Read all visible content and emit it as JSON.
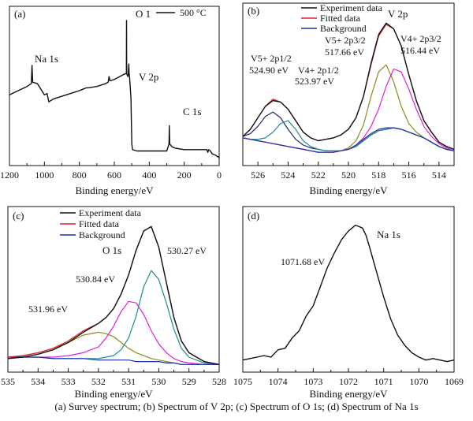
{
  "caption": "(a) Survey spectrum; (b) Spectrum of V 2p; (c) Spectrum of O 1s; (d) Spectrum of Na 1s",
  "colors": {
    "experiment": "#111111",
    "fitted": "#e0202a",
    "background": "#1f2fa8",
    "peak_olive": "#8c8c1e",
    "peak_teal": "#1f8c8c",
    "peak_magenta": "#e020d8",
    "peak_navy": "#1a2a6c"
  },
  "chart_data": [
    {
      "id": "a",
      "panel_label": "(a)",
      "type": "line",
      "xlabel": "Binding energy/eV",
      "ylabel": "",
      "xlim": [
        1200,
        0
      ],
      "xticks": [
        1200,
        1000,
        800,
        600,
        400,
        200,
        0
      ],
      "legend": {
        "position": "top-right",
        "entries": [
          "500 °C"
        ]
      },
      "annotations": [
        "O 1",
        "Na 1s",
        "V 2p",
        "C 1s"
      ],
      "series": [
        {
          "name": "500 °C",
          "color": "#111111",
          "x": [
            1200,
            1150,
            1100,
            1075,
            1071,
            1067,
            1040,
            1000,
            985,
            975,
            950,
            900,
            850,
            800,
            780,
            760,
            750,
            700,
            650,
            635,
            630,
            625,
            600,
            570,
            540,
            531,
            530,
            529,
            522,
            520,
            517,
            515,
            513,
            510,
            505,
            500,
            496,
            470,
            440,
            400,
            350,
            300,
            287,
            285,
            283,
            270,
            250,
            200,
            150,
            100,
            70,
            65,
            60,
            50,
            40,
            20,
            10,
            5,
            0
          ],
          "y": [
            0.47,
            0.5,
            0.53,
            0.55,
            0.68,
            0.56,
            0.55,
            0.47,
            0.48,
            0.42,
            0.44,
            0.46,
            0.48,
            0.5,
            0.51,
            0.52,
            0.52,
            0.53,
            0.55,
            0.56,
            0.6,
            0.57,
            0.58,
            0.6,
            0.62,
            0.62,
            1.0,
            0.62,
            0.6,
            0.62,
            0.69,
            0.62,
            0.6,
            0.55,
            0.45,
            0.12,
            0.08,
            0.07,
            0.07,
            0.07,
            0.07,
            0.07,
            0.12,
            0.25,
            0.12,
            0.1,
            0.09,
            0.08,
            0.08,
            0.08,
            0.08,
            0.06,
            0.08,
            0.07,
            0.05,
            0.04,
            0.03,
            0.03,
            0.02
          ]
        }
      ]
    },
    {
      "id": "b",
      "panel_label": "(b)",
      "type": "line",
      "xlabel": "Binding energy/eV",
      "ylabel": "",
      "xlim": [
        527,
        513
      ],
      "xticks": [
        526,
        524,
        522,
        520,
        518,
        516,
        514
      ],
      "legend": {
        "position": "top-left",
        "entries": [
          "Experiment data",
          "Fitted data",
          "Background"
        ]
      },
      "annotations": [
        "V 2p",
        "V5+ 2p1/2",
        "524.90 eV",
        "V4+ 2p1/2",
        "523.97 eV",
        "V5+ 2p3/2",
        "517.66 eV",
        "V4+ 2p3/2",
        "516.44 eV"
      ],
      "x": [
        527,
        526.5,
        526,
        525.5,
        525,
        524.5,
        524,
        523.5,
        523,
        522.5,
        522,
        521.5,
        521,
        520.5,
        520,
        519.5,
        519,
        518.5,
        518,
        517.5,
        517,
        516.5,
        516,
        515.5,
        515,
        514.5,
        514,
        513.5,
        513
      ],
      "series": [
        {
          "name": "Experiment data",
          "color": "#111111",
          "values": [
            0.17,
            0.22,
            0.3,
            0.38,
            0.42,
            0.41,
            0.36,
            0.28,
            0.2,
            0.16,
            0.14,
            0.15,
            0.16,
            0.18,
            0.22,
            0.3,
            0.45,
            0.68,
            0.88,
            0.96,
            0.92,
            0.8,
            0.6,
            0.42,
            0.28,
            0.2,
            0.13,
            0.1,
            0.08
          ]
        },
        {
          "name": "Fitted data",
          "color": "#e0202a",
          "values": [
            0.17,
            0.22,
            0.3,
            0.38,
            0.43,
            0.41,
            0.36,
            0.28,
            0.2,
            0.16,
            0.14,
            0.15,
            0.16,
            0.18,
            0.22,
            0.3,
            0.45,
            0.67,
            0.87,
            0.95,
            0.92,
            0.8,
            0.6,
            0.42,
            0.28,
            0.2,
            0.13,
            0.1,
            0.08
          ]
        },
        {
          "name": "Background",
          "color": "#1f2fa8",
          "values": [
            0.16,
            0.15,
            0.14,
            0.13,
            0.12,
            0.11,
            0.1,
            0.09,
            0.08,
            0.07,
            0.06,
            0.06,
            0.06,
            0.07,
            0.08,
            0.11,
            0.15,
            0.19,
            0.22,
            0.23,
            0.23,
            0.22,
            0.2,
            0.18,
            0.16,
            0.13,
            0.1,
            0.08,
            0.07
          ]
        },
        {
          "name": "",
          "color": "#1a2a6c",
          "values": [
            0.17,
            0.19,
            0.24,
            0.31,
            0.34,
            0.3,
            0.22,
            0.15,
            0.11,
            0.09,
            0.08,
            0.07,
            0.07,
            0.07,
            0.08,
            0.1,
            0.14,
            0.18,
            0.21,
            0.22,
            0.23,
            0.22,
            0.2,
            0.18,
            0.16,
            0.13,
            0.1,
            0.08,
            0.07
          ]
        },
        {
          "name": "",
          "color": "#1f8c8c",
          "values": [
            0.16,
            0.15,
            0.15,
            0.16,
            0.2,
            0.26,
            0.28,
            0.22,
            0.14,
            0.1,
            0.08,
            0.07,
            0.07,
            0.07,
            0.08,
            0.1,
            0.14,
            0.18,
            0.21,
            0.22,
            0.23,
            0.22,
            0.2,
            0.18,
            0.16,
            0.13,
            0.1,
            0.08,
            0.07
          ]
        },
        {
          "name": "",
          "color": "#8c8c1e",
          "values": [
            0.16,
            0.15,
            0.14,
            0.13,
            0.12,
            0.11,
            0.1,
            0.09,
            0.08,
            0.07,
            0.06,
            0.06,
            0.06,
            0.07,
            0.09,
            0.14,
            0.25,
            0.45,
            0.62,
            0.67,
            0.55,
            0.38,
            0.26,
            0.2,
            0.16,
            0.13,
            0.1,
            0.08,
            0.07
          ]
        },
        {
          "name": "",
          "color": "#e020d8",
          "values": [
            0.16,
            0.15,
            0.14,
            0.13,
            0.12,
            0.11,
            0.1,
            0.09,
            0.08,
            0.07,
            0.06,
            0.06,
            0.06,
            0.07,
            0.08,
            0.11,
            0.16,
            0.24,
            0.36,
            0.52,
            0.64,
            0.62,
            0.5,
            0.36,
            0.24,
            0.17,
            0.12,
            0.09,
            0.07
          ]
        }
      ]
    },
    {
      "id": "c",
      "panel_label": "(c)",
      "type": "line",
      "xlabel": "Binding energy/eV",
      "ylabel": "",
      "xlim": [
        535,
        528
      ],
      "xticks": [
        535,
        534,
        533,
        532,
        531,
        530,
        529,
        528
      ],
      "legend": {
        "position": "top-left",
        "entries": [
          "Experiment data",
          "Fitted data",
          "Background"
        ]
      },
      "annotations": [
        "O 1s",
        "530.27 eV",
        "530.84 eV",
        "531.96 eV"
      ],
      "x": [
        535,
        534.5,
        534,
        533.5,
        533,
        532.5,
        532,
        531.75,
        531.5,
        531.25,
        531,
        530.75,
        530.5,
        530.25,
        530,
        529.75,
        529.5,
        529.25,
        529,
        528.5,
        528
      ],
      "series": [
        {
          "name": "Experiment data",
          "color": "#111111",
          "values": [
            0.06,
            0.07,
            0.09,
            0.12,
            0.17,
            0.24,
            0.3,
            0.34,
            0.4,
            0.5,
            0.63,
            0.8,
            0.93,
            0.96,
            0.82,
            0.58,
            0.34,
            0.18,
            0.1,
            0.04,
            0.02
          ]
        },
        {
          "name": "Fitted data",
          "color": "#e0202a",
          "values": [
            0.07,
            0.08,
            0.1,
            0.13,
            0.18,
            0.25,
            0.3,
            0.34,
            0.4,
            0.5,
            0.63,
            0.8,
            0.93,
            0.96,
            0.82,
            0.58,
            0.34,
            0.18,
            0.1,
            0.04,
            0.02
          ]
        },
        {
          "name": "Background",
          "color": "#1f2fa8",
          "values": [
            0.07,
            0.07,
            0.07,
            0.06,
            0.06,
            0.06,
            0.05,
            0.05,
            0.05,
            0.05,
            0.05,
            0.04,
            0.04,
            0.04,
            0.04,
            0.03,
            0.03,
            0.02,
            0.02,
            0.02,
            0.02
          ]
        },
        {
          "name": "",
          "color": "#8c8c1e",
          "values": [
            0.07,
            0.08,
            0.1,
            0.13,
            0.17,
            0.22,
            0.24,
            0.23,
            0.21,
            0.17,
            0.13,
            0.1,
            0.08,
            0.06,
            0.05,
            0.04,
            0.03,
            0.02,
            0.02,
            0.02,
            0.02
          ]
        },
        {
          "name": "",
          "color": "#e020d8",
          "values": [
            0.07,
            0.07,
            0.07,
            0.07,
            0.08,
            0.1,
            0.14,
            0.2,
            0.28,
            0.38,
            0.45,
            0.44,
            0.36,
            0.25,
            0.16,
            0.1,
            0.06,
            0.04,
            0.03,
            0.02,
            0.02
          ]
        },
        {
          "name": "",
          "color": "#1f8c8c",
          "values": [
            0.07,
            0.07,
            0.07,
            0.06,
            0.06,
            0.06,
            0.06,
            0.07,
            0.08,
            0.12,
            0.2,
            0.35,
            0.55,
            0.66,
            0.6,
            0.44,
            0.26,
            0.13,
            0.07,
            0.03,
            0.02
          ]
        }
      ]
    },
    {
      "id": "d",
      "panel_label": "(d)",
      "type": "line",
      "xlabel": "Binding energy/eV",
      "ylabel": "",
      "xlim": [
        1075,
        1069
      ],
      "xticks": [
        1075,
        1074,
        1073,
        1072,
        1071,
        1070,
        1069
      ],
      "legend": {
        "position": "none",
        "entries": []
      },
      "annotations": [
        "Na 1s",
        "1071.68 eV"
      ],
      "series": [
        {
          "name": "Na 1s",
          "color": "#111111",
          "x": [
            1075,
            1074.8,
            1074.6,
            1074.4,
            1074.2,
            1074,
            1073.8,
            1073.6,
            1073.4,
            1073.2,
            1073,
            1072.8,
            1072.6,
            1072.4,
            1072.2,
            1072,
            1071.9,
            1071.8,
            1071.7,
            1071.6,
            1071.5,
            1071.4,
            1071.2,
            1071,
            1070.8,
            1070.6,
            1070.4,
            1070.2,
            1070,
            1069.8,
            1069.6,
            1069.4,
            1069.2,
            1069
          ],
          "y": [
            0.05,
            0.06,
            0.07,
            0.08,
            0.07,
            0.12,
            0.13,
            0.2,
            0.25,
            0.35,
            0.42,
            0.55,
            0.68,
            0.78,
            0.87,
            0.93,
            0.95,
            0.97,
            0.96,
            0.95,
            0.9,
            0.82,
            0.65,
            0.48,
            0.33,
            0.22,
            0.15,
            0.1,
            0.07,
            0.05,
            0.06,
            0.05,
            0.04,
            0.05
          ]
        }
      ]
    }
  ]
}
